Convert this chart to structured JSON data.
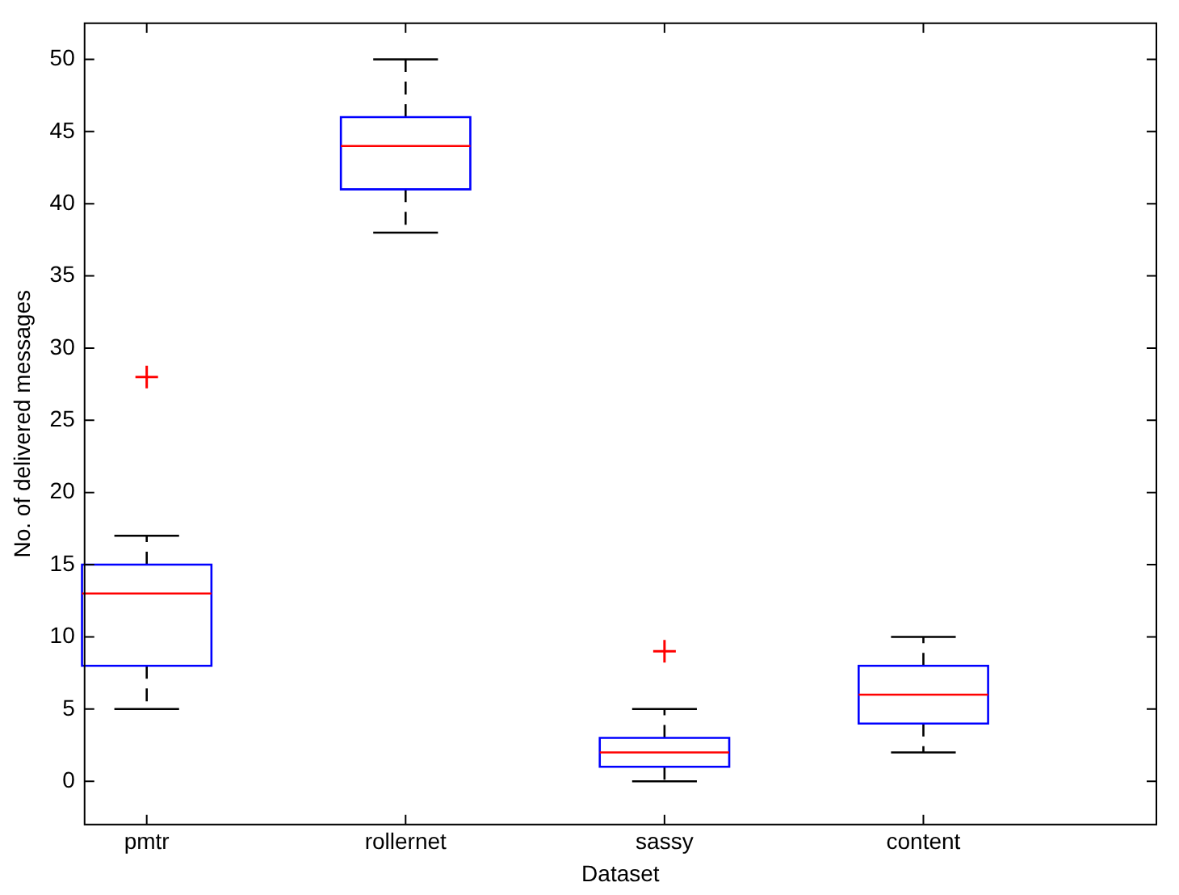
{
  "chart_data": {
    "type": "box",
    "xlabel": "Dataset",
    "ylabel": "No. of delivered messages",
    "categories": [
      "pmtr",
      "rollernet",
      "sassy",
      "content"
    ],
    "ylim": [
      -3,
      52.5
    ],
    "yticks": [
      0,
      5,
      10,
      15,
      20,
      25,
      30,
      35,
      40,
      45,
      50
    ],
    "grid": false,
    "legend": false,
    "series": [
      {
        "color": "#0000ff",
        "boxes": [
          {
            "low": 5,
            "q1": 8,
            "median": 13,
            "q3": 15,
            "high": 17,
            "outliers": [
              28
            ]
          },
          {
            "low": 38,
            "q1": 41,
            "median": 44,
            "q3": 46,
            "high": 50
          },
          {
            "low": 0,
            "q1": 1,
            "median": 2,
            "q3": 3,
            "high": 5,
            "outliers": [
              9
            ]
          },
          {
            "low": 2,
            "q1": 4,
            "median": 6,
            "q3": 8,
            "high": 10
          }
        ]
      }
    ]
  }
}
